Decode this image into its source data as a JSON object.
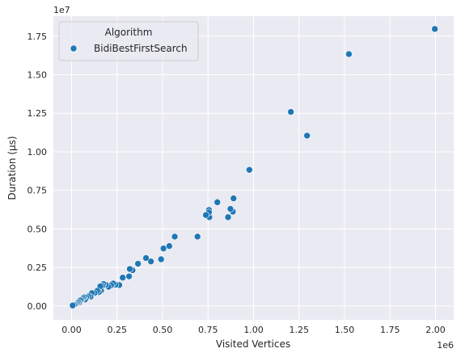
{
  "chart_data": {
    "type": "scatter",
    "xlabel": "Visited Vertices",
    "ylabel": "Duration (µs)",
    "x_offset_label": "1e6",
    "y_offset_label": "1e7",
    "xlim": [
      -100000,
      2100000
    ],
    "ylim": [
      -900000,
      18800000
    ],
    "grid": true,
    "legend_position": "top-left",
    "legend_title": "Algorithm",
    "point_color": "#1f77b4",
    "background_color": "#eaeaf2",
    "x_ticks": [
      {
        "value": 0,
        "label": "0.00"
      },
      {
        "value": 250000,
        "label": "0.25"
      },
      {
        "value": 500000,
        "label": "0.50"
      },
      {
        "value": 750000,
        "label": "0.75"
      },
      {
        "value": 1000000,
        "label": "1.00"
      },
      {
        "value": 1250000,
        "label": "1.25"
      },
      {
        "value": 1500000,
        "label": "1.50"
      },
      {
        "value": 1750000,
        "label": "1.75"
      },
      {
        "value": 2000000,
        "label": "2.00"
      }
    ],
    "y_ticks": [
      {
        "value": 0,
        "label": "0.00"
      },
      {
        "value": 2500000,
        "label": "0.25"
      },
      {
        "value": 5000000,
        "label": "0.50"
      },
      {
        "value": 7500000,
        "label": "0.75"
      },
      {
        "value": 10000000,
        "label": "1.00"
      },
      {
        "value": 12500000,
        "label": "1.25"
      },
      {
        "value": 15000000,
        "label": "1.50"
      },
      {
        "value": 17500000,
        "label": "1.75"
      }
    ],
    "series": [
      {
        "name": "BidiBestFirstSearch",
        "points": [
          [
            1996000,
            17970000
          ],
          [
            1524000,
            16340000
          ],
          [
            1294000,
            11050000
          ],
          [
            1205000,
            12590000
          ],
          [
            977000,
            8830000
          ],
          [
            890000,
            6980000
          ],
          [
            886000,
            6120000
          ],
          [
            873000,
            6300000
          ],
          [
            860000,
            5760000
          ],
          [
            801000,
            6730000
          ],
          [
            757000,
            5760000
          ],
          [
            755000,
            6230000
          ],
          [
            755000,
            6080000
          ],
          [
            738000,
            5900000
          ],
          [
            692000,
            4500000
          ],
          [
            567000,
            4500000
          ],
          [
            537000,
            3890000
          ],
          [
            505000,
            3730000
          ],
          [
            492000,
            3030000
          ],
          [
            436000,
            2890000
          ],
          [
            409000,
            3110000
          ],
          [
            365000,
            2740000
          ],
          [
            335000,
            2320000
          ],
          [
            320000,
            2400000
          ],
          [
            316000,
            1920000
          ],
          [
            281000,
            1840000
          ],
          [
            262000,
            1360000
          ],
          [
            242000,
            1380000
          ],
          [
            229000,
            1460000
          ],
          [
            217000,
            1340000
          ],
          [
            203000,
            1240000
          ],
          [
            188000,
            1380000
          ],
          [
            175000,
            1430000
          ],
          [
            168000,
            1310000
          ],
          [
            162000,
            1000000
          ],
          [
            158000,
            1280000
          ],
          [
            150000,
            900000
          ],
          [
            141000,
            980000
          ],
          [
            126000,
            840000
          ],
          [
            112000,
            830000
          ],
          [
            104000,
            590000
          ],
          [
            92000,
            620000
          ],
          [
            81000,
            540000
          ],
          [
            74000,
            420000
          ],
          [
            68000,
            560000
          ],
          [
            61000,
            490000
          ],
          [
            54000,
            400000
          ],
          [
            48000,
            360000
          ],
          [
            42000,
            220000
          ],
          [
            36000,
            250000
          ],
          [
            30000,
            180000
          ],
          [
            24000,
            120000
          ],
          [
            18000,
            90000
          ],
          [
            12000,
            60000
          ],
          [
            6000,
            30000
          ]
        ]
      }
    ]
  }
}
